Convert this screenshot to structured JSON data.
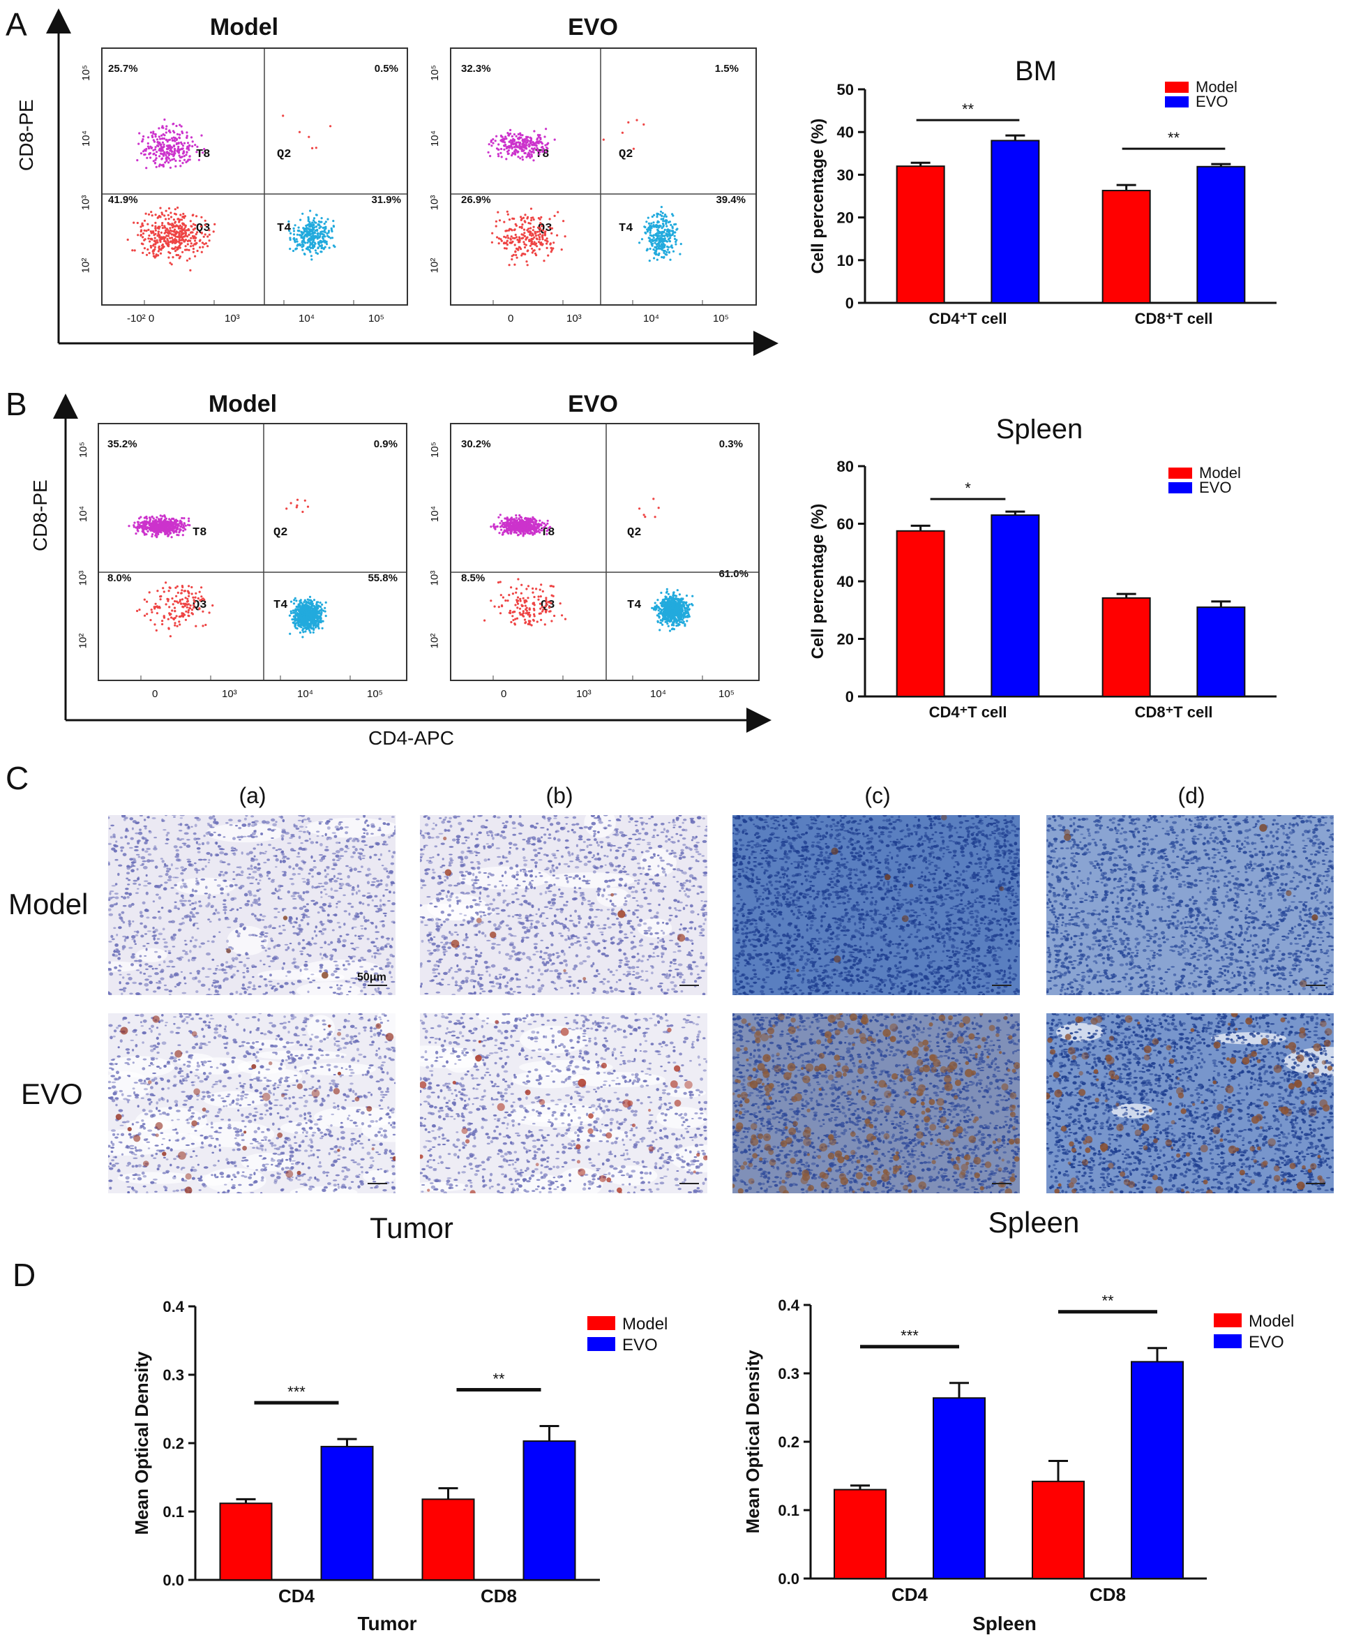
{
  "panels": {
    "A": {
      "letter": "A"
    },
    "B": {
      "letter": "B"
    },
    "C": {
      "letter": "C"
    },
    "D": {
      "letter": "D"
    }
  },
  "flow": {
    "y_axis_label": "CD8-PE",
    "x_axis_label": "CD4-APC",
    "tick_labels_y": [
      "10⁵",
      "10⁴",
      "10³",
      "10²"
    ],
    "tick_labels_x_A": [
      "-10² 0",
      "10³",
      "10⁴",
      "10⁵"
    ],
    "tick_labels_x_B": [
      "0",
      "10³",
      "10⁴",
      "10⁵"
    ],
    "plots": [
      {
        "title": "Model",
        "q_ul": "25.7%",
        "q_ur": "0.5%",
        "q_ll": "41.9%",
        "q_lr": "31.9%",
        "gate_t8": "T8",
        "gate_q2": "Q2",
        "gate_q3": "Q3",
        "gate_t4": "T4"
      },
      {
        "title": "EVO",
        "q_ul": "32.3%",
        "q_ur": "1.5%",
        "q_ll": "26.9%",
        "q_lr": "39.4%",
        "gate_t8": "T8",
        "gate_q2": "Q2",
        "gate_q3": "Q3",
        "gate_t4": "T4"
      },
      {
        "title": "Model",
        "q_ul": "35.2%",
        "q_ur": "0.9%",
        "q_ll": "8.0%",
        "q_lr": "55.8%",
        "gate_t8": "T8",
        "gate_q2": "Q2",
        "gate_q3": "Q3",
        "gate_t4": "T4"
      },
      {
        "title": "EVO",
        "q_ul": "30.2%",
        "q_ur": "0.3%",
        "q_ll": "8.5%",
        "q_lr": "61.0%",
        "gate_t8": "T8",
        "gate_q2": "Q2",
        "gate_q3": "Q3",
        "gate_t4": "T4"
      }
    ]
  },
  "ihc": {
    "columns": [
      "(a)",
      "(b)",
      "(c)",
      "(d)"
    ],
    "rows": [
      "Model",
      "EVO"
    ],
    "scale_bar": "50μm",
    "tumor_label": "Tumor",
    "spleen_label": "Spleen"
  },
  "colors": {
    "model": "#ff0000",
    "evo": "#0000ff"
  },
  "chart_data": [
    {
      "type": "bar",
      "id": "bm",
      "title": "BM",
      "categories": [
        "CD4⁺T cell",
        "CD8⁺T cell"
      ],
      "ylabel": "Cell percentage  (%)",
      "ylim": [
        0,
        50
      ],
      "yticks": [
        0,
        10,
        20,
        30,
        40,
        50
      ],
      "series": [
        {
          "name": "Model",
          "values": [
            32,
            26.3
          ],
          "errors": [
            0.8,
            1.3
          ]
        },
        {
          "name": "EVO",
          "values": [
            38,
            31.9
          ],
          "errors": [
            1.2,
            0.6
          ]
        }
      ],
      "significance": [
        "**",
        "**"
      ]
    },
    {
      "type": "bar",
      "id": "spleen_flow",
      "title": "Spleen",
      "categories": [
        "CD4⁺T cell",
        "CD8⁺T cell"
      ],
      "ylabel": "Cell percentage  (%)",
      "ylim": [
        0,
        80
      ],
      "yticks": [
        0,
        20,
        40,
        60,
        80
      ],
      "series": [
        {
          "name": "Model",
          "values": [
            57.5,
            34.2
          ],
          "errors": [
            1.8,
            1.4
          ]
        },
        {
          "name": "EVO",
          "values": [
            63,
            31
          ],
          "errors": [
            1.2,
            2.0
          ]
        }
      ],
      "significance": [
        "*",
        ""
      ]
    },
    {
      "type": "bar",
      "id": "tumor_od",
      "title": "Tumor",
      "categories": [
        "CD4",
        "CD8"
      ],
      "ylabel": "Mean Optical Density",
      "ylim": [
        0,
        0.4
      ],
      "yticks": [
        "0.0",
        "0.1",
        "0.2",
        "0.3",
        "0.4"
      ],
      "series": [
        {
          "name": "Model",
          "values": [
            0.112,
            0.118
          ],
          "errors": [
            0.006,
            0.016
          ]
        },
        {
          "name": "EVO",
          "values": [
            0.195,
            0.203
          ],
          "errors": [
            0.011,
            0.022
          ]
        }
      ],
      "significance": [
        "***",
        "**"
      ]
    },
    {
      "type": "bar",
      "id": "spleen_od",
      "title": "Spleen",
      "categories": [
        "CD4",
        "CD8"
      ],
      "ylabel": "Mean Optical Density",
      "ylim": [
        0,
        0.4
      ],
      "yticks": [
        "0.0",
        "0.1",
        "0.2",
        "0.3",
        "0.4"
      ],
      "series": [
        {
          "name": "Model",
          "values": [
            0.13,
            0.142
          ],
          "errors": [
            0.006,
            0.03
          ]
        },
        {
          "name": "EVO",
          "values": [
            0.264,
            0.317
          ],
          "errors": [
            0.022,
            0.02
          ]
        }
      ],
      "significance": [
        "***",
        "**"
      ]
    }
  ]
}
